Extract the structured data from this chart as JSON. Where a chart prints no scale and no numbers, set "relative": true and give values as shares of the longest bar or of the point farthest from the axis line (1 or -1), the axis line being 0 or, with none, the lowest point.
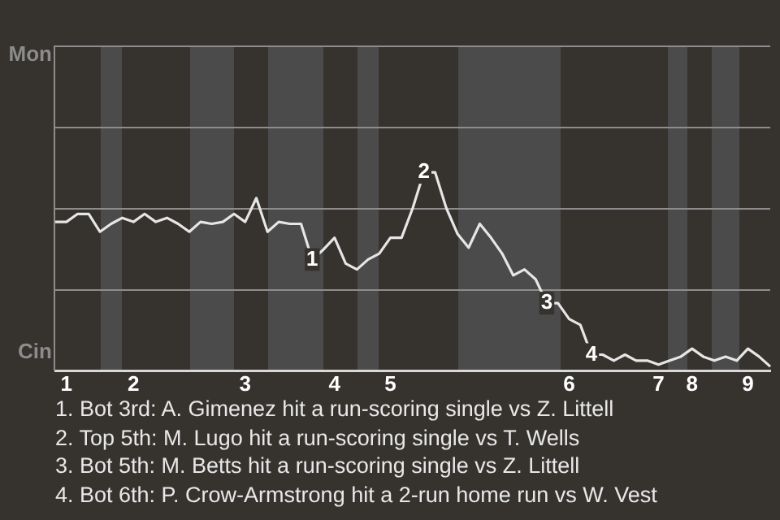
{
  "chart_data": {
    "type": "line",
    "relative": true,
    "categories": [
      null,
      "1",
      null,
      null,
      null,
      null,
      null,
      "2",
      null,
      null,
      null,
      null,
      null,
      null,
      null,
      null,
      null,
      "3",
      null,
      null,
      null,
      null,
      null,
      null,
      null,
      "4",
      null,
      null,
      null,
      null,
      "5",
      null,
      null,
      null,
      null,
      null,
      null,
      null,
      null,
      null,
      null,
      null,
      null,
      null,
      null,
      null,
      "6",
      null,
      null,
      null,
      null,
      null,
      null,
      null,
      "7",
      null,
      null,
      "8",
      null,
      null,
      null,
      null,
      "9",
      null,
      null
    ],
    "series": [
      {
        "color": "#e6e6e6",
        "values": [
          0.75,
          0.75,
          0.79,
          0.79,
          0.7,
          0.74,
          0.77,
          0.75,
          0.79,
          0.75,
          0.77,
          0.74,
          0.7,
          0.75,
          0.74,
          0.75,
          0.79,
          0.75,
          0.87,
          0.7,
          0.75,
          0.74,
          0.74,
          0.56,
          0.61,
          0.67,
          0.54,
          0.51,
          0.56,
          0.59,
          0.67,
          0.67,
          0.82,
          1,
          1,
          0.82,
          0.69,
          0.62,
          0.74,
          0.67,
          0.59,
          0.48,
          0.51,
          0.46,
          0.34,
          0.34,
          0.26,
          0.23,
          0.08,
          0.08,
          0.05,
          0.08,
          0.05,
          0.05,
          0.03,
          0.05,
          0.07,
          0.11,
          0.07,
          0.05,
          0.07,
          0.05,
          0.11,
          0.07,
          0.02
        ]
      }
    ],
    "marker": "none",
    "line_style": "solid",
    "ref_lines": [
      {
        "axis": "y",
        "value": 0.41,
        "color": "#8d8d8d"
      },
      {
        "axis": "y",
        "value": 0.82,
        "color": "#8d8d8d"
      },
      {
        "axis": "y",
        "value": 1.23,
        "color": "#8d8d8d"
      },
      {
        "axis": "y",
        "value": 1.64,
        "color": "#8d8d8d"
      }
    ],
    "annotations": [
      "Mon",
      "Cin",
      {
        "text": "1",
        "y": 0.56
      },
      {
        "text": "2",
        "y": 1
      },
      {
        "text": "3",
        "y": 0.34
      },
      {
        "text": "4",
        "y": 0.08
      },
      "1. Bot 3rd: A. Gimenez hit a run-scoring single vs Z. Littell",
      "2. Top 5th: M. Lugo hit a run-scoring single vs T. Wells",
      "3. Bot 5th: M. Betts hit a run-scoring single vs Z. Littell",
      "4. Bot 6th: P. Crow-Armstrong hit a 2-run home run vs W. Vest"
    ]
  }
}
